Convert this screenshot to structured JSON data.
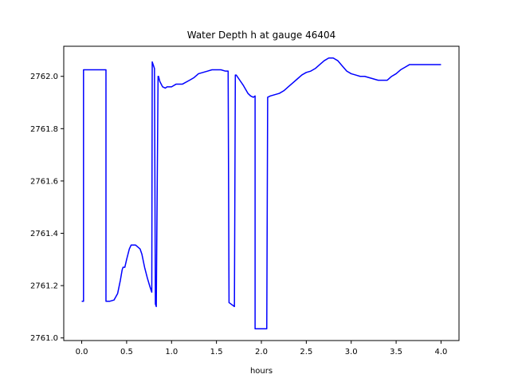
{
  "chart_data": {
    "type": "line",
    "title": "Water Depth h at gauge 46404",
    "xlabel": "hours",
    "ylabel": "",
    "xlim": [
      -0.2,
      4.2
    ],
    "ylim": [
      2760.99,
      2762.115
    ],
    "xticks": [
      0.0,
      0.5,
      1.0,
      1.5,
      2.0,
      2.5,
      3.0,
      3.5,
      4.0
    ],
    "xtick_labels": [
      "0.0",
      "0.5",
      "1.0",
      "1.5",
      "2.0",
      "2.5",
      "3.0",
      "3.5",
      "4.0"
    ],
    "yticks": [
      2761.0,
      2761.2,
      2761.4,
      2761.6,
      2761.8,
      2762.0
    ],
    "ytick_labels": [
      "2761.0",
      "2761.2",
      "2761.4",
      "2761.6",
      "2761.8",
      "2762.0"
    ],
    "grid": false,
    "series": [
      {
        "color": "#0000ff",
        "x": [
          0.0,
          0.02,
          0.02,
          0.27,
          0.27,
          0.31,
          0.36,
          0.4,
          0.43,
          0.45,
          0.46,
          0.48,
          0.5,
          0.53,
          0.55,
          0.6,
          0.65,
          0.67,
          0.7,
          0.73,
          0.76,
          0.78,
          0.785,
          0.81,
          0.82,
          0.83,
          0.85,
          0.855,
          0.87,
          0.9,
          0.93,
          0.95,
          1.0,
          1.05,
          1.08,
          1.12,
          1.2,
          1.25,
          1.3,
          1.35,
          1.4,
          1.45,
          1.5,
          1.55,
          1.6,
          1.63,
          1.64,
          1.66,
          1.7,
          1.71,
          1.72,
          1.75,
          1.8,
          1.85,
          1.88,
          1.91,
          1.93,
          1.93,
          1.96,
          2.0,
          2.04,
          2.06,
          2.07,
          2.1,
          2.15,
          2.2,
          2.25,
          2.3,
          2.35,
          2.4,
          2.45,
          2.5,
          2.55,
          2.6,
          2.65,
          2.7,
          2.75,
          2.8,
          2.85,
          2.9,
          2.95,
          3.0,
          3.05,
          3.1,
          3.15,
          3.2,
          3.25,
          3.3,
          3.35,
          3.4,
          3.45,
          3.5,
          3.55,
          3.6,
          3.65,
          3.7,
          3.75,
          3.8,
          3.85,
          3.9,
          3.95,
          4.0
        ],
        "y": [
          2761.14,
          2761.14,
          2762.025,
          2762.025,
          2761.14,
          2761.14,
          2761.145,
          2761.17,
          2761.22,
          2761.26,
          2761.27,
          2761.27,
          2761.3,
          2761.34,
          2761.355,
          2761.355,
          2761.34,
          2761.32,
          2761.27,
          2761.23,
          2761.195,
          2761.175,
          2762.055,
          2762.03,
          2761.13,
          2761.12,
          2762.0,
          2762.0,
          2761.98,
          2761.96,
          2761.955,
          2761.96,
          2761.96,
          2761.97,
          2761.97,
          2761.97,
          2761.985,
          2761.995,
          2762.01,
          2762.015,
          2762.02,
          2762.025,
          2762.025,
          2762.025,
          2762.02,
          2762.02,
          2761.135,
          2761.13,
          2761.12,
          2762.005,
          2762.005,
          2761.99,
          2761.965,
          2761.935,
          2761.925,
          2761.92,
          2761.925,
          2761.035,
          2761.035,
          2761.035,
          2761.035,
          2761.035,
          2761.92,
          2761.925,
          2761.93,
          2761.935,
          2761.945,
          2761.96,
          2761.975,
          2761.99,
          2762.005,
          2762.015,
          2762.02,
          2762.03,
          2762.045,
          2762.06,
          2762.07,
          2762.07,
          2762.06,
          2762.04,
          2762.02,
          2762.01,
          2762.005,
          2762.0,
          2762.0,
          2761.995,
          2761.99,
          2761.985,
          2761.985,
          2761.985,
          2762.0,
          2762.01,
          2762.025,
          2762.035,
          2762.045,
          2762.045,
          2762.045,
          2762.045,
          2762.045,
          2762.045,
          2762.045,
          2762.045
        ]
      }
    ]
  }
}
